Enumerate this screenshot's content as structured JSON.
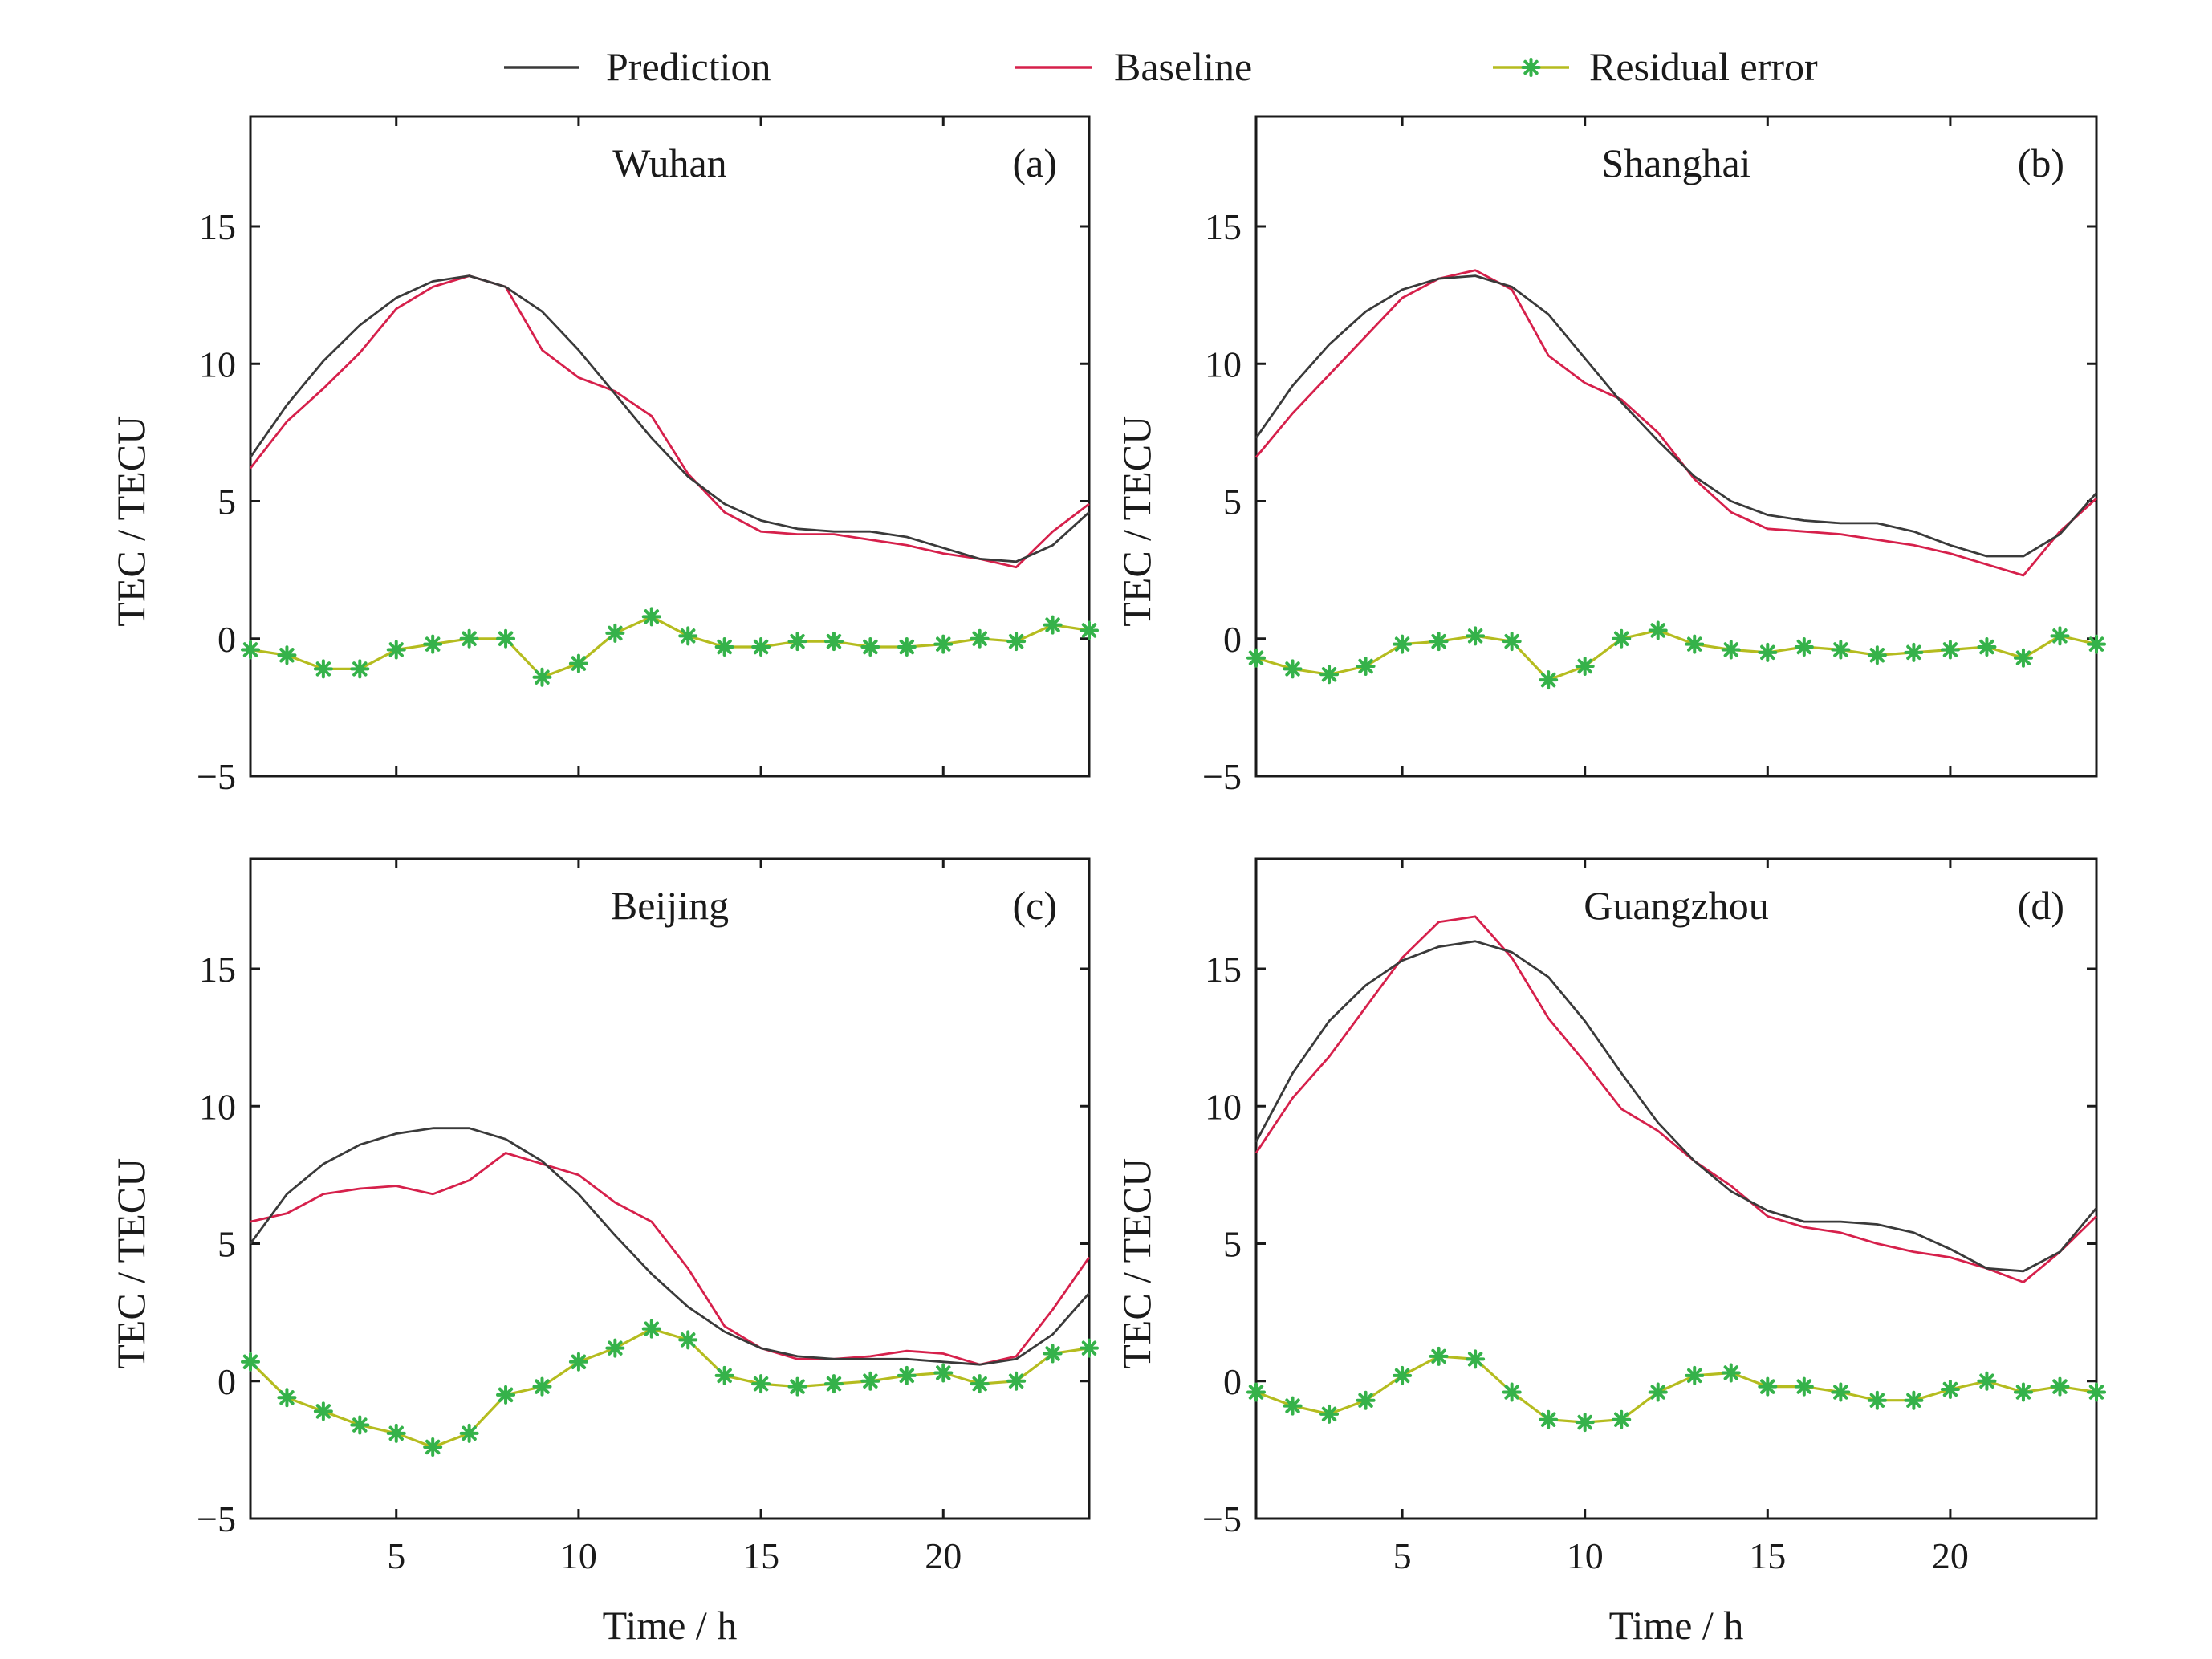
{
  "legend": {
    "placement": "top",
    "entries": [
      {
        "key": "prediction",
        "label": "Prediction"
      },
      {
        "key": "baseline",
        "label": "Baseline"
      },
      {
        "key": "residual",
        "label": "Residual error"
      }
    ]
  },
  "colors": {
    "prediction": "#3a3a3a",
    "baseline": "#d6204b",
    "residual_line": "#b5bc1f",
    "residual_marker": "#35b24a",
    "axis": "#1a1a1a"
  },
  "chart_data": [
    {
      "type": "line",
      "panel": "a",
      "title": "Wuhan",
      "tag": "(a)",
      "xlabel": "Time / h",
      "ylabel": "TEC / TECU",
      "xlim": [
        1,
        24
      ],
      "ylim": [
        -5,
        19
      ],
      "xticks": [
        5,
        10,
        15,
        20
      ],
      "yticks": [
        -5,
        0,
        5,
        10,
        15
      ],
      "show_xticklabels": false,
      "grid": false,
      "x": [
        1,
        2,
        3,
        4,
        5,
        6,
        7,
        8,
        9,
        10,
        11,
        12,
        13,
        14,
        15,
        16,
        17,
        18,
        19,
        20,
        21,
        22,
        23,
        24
      ],
      "series": [
        {
          "name": "Prediction",
          "key": "prediction",
          "values": [
            6.6,
            8.5,
            10.1,
            11.4,
            12.4,
            13.0,
            13.2,
            12.8,
            11.9,
            10.5,
            8.9,
            7.3,
            5.9,
            4.9,
            4.3,
            4.0,
            3.9,
            3.9,
            3.7,
            3.3,
            2.9,
            2.8,
            3.4,
            4.6
          ]
        },
        {
          "name": "Baseline",
          "key": "baseline",
          "values": [
            6.2,
            7.9,
            9.1,
            10.4,
            12.0,
            12.8,
            13.2,
            12.8,
            10.5,
            9.5,
            9.0,
            8.1,
            6.0,
            4.6,
            3.9,
            3.8,
            3.8,
            3.6,
            3.4,
            3.1,
            2.9,
            2.6,
            3.9,
            4.9
          ]
        },
        {
          "name": "Residual error",
          "key": "residual",
          "markers": true,
          "values": [
            -0.4,
            -0.6,
            -1.1,
            -1.1,
            -0.4,
            -0.2,
            0.0,
            0.0,
            -1.4,
            -0.9,
            0.2,
            0.8,
            0.1,
            -0.3,
            -0.3,
            -0.1,
            -0.1,
            -0.3,
            -0.3,
            -0.2,
            0.0,
            -0.1,
            0.5,
            0.3
          ]
        }
      ]
    },
    {
      "type": "line",
      "panel": "b",
      "title": "Shanghai",
      "tag": "(b)",
      "xlabel": "Time / h",
      "ylabel": "TEC / TECU",
      "xlim": [
        1,
        24
      ],
      "ylim": [
        -5,
        19
      ],
      "xticks": [
        5,
        10,
        15,
        20
      ],
      "yticks": [
        -5,
        0,
        5,
        10,
        15
      ],
      "show_xticklabels": false,
      "grid": false,
      "x": [
        1,
        2,
        3,
        4,
        5,
        6,
        7,
        8,
        9,
        10,
        11,
        12,
        13,
        14,
        15,
        16,
        17,
        18,
        19,
        20,
        21,
        22,
        23,
        24
      ],
      "series": [
        {
          "name": "Prediction",
          "key": "prediction",
          "values": [
            7.3,
            9.2,
            10.7,
            11.9,
            12.7,
            13.1,
            13.2,
            12.8,
            11.8,
            10.2,
            8.6,
            7.2,
            5.9,
            5.0,
            4.5,
            4.3,
            4.2,
            4.2,
            3.9,
            3.4,
            3.0,
            3.0,
            3.8,
            5.3
          ]
        },
        {
          "name": "Baseline",
          "key": "baseline",
          "values": [
            6.6,
            8.2,
            9.6,
            11.0,
            12.4,
            13.1,
            13.4,
            12.7,
            10.3,
            9.3,
            8.7,
            7.5,
            5.8,
            4.6,
            4.0,
            3.9,
            3.8,
            3.6,
            3.4,
            3.1,
            2.7,
            2.3,
            3.9,
            5.1
          ]
        },
        {
          "name": "Residual error",
          "key": "residual",
          "markers": true,
          "values": [
            -0.7,
            -1.1,
            -1.3,
            -1.0,
            -0.2,
            -0.1,
            0.1,
            -0.1,
            -1.5,
            -1.0,
            0.0,
            0.3,
            -0.2,
            -0.4,
            -0.5,
            -0.3,
            -0.4,
            -0.6,
            -0.5,
            -0.4,
            -0.3,
            -0.7,
            0.1,
            -0.2
          ]
        }
      ]
    },
    {
      "type": "line",
      "panel": "c",
      "title": "Beijing",
      "tag": "(c)",
      "xlabel": "Time / h",
      "ylabel": "TEC / TECU",
      "xlim": [
        1,
        24
      ],
      "ylim": [
        -5,
        19
      ],
      "xticks": [
        5,
        10,
        15,
        20
      ],
      "yticks": [
        -5,
        0,
        5,
        10,
        15
      ],
      "show_xticklabels": true,
      "grid": false,
      "x": [
        1,
        2,
        3,
        4,
        5,
        6,
        7,
        8,
        9,
        10,
        11,
        12,
        13,
        14,
        15,
        16,
        17,
        18,
        19,
        20,
        21,
        22,
        23,
        24
      ],
      "series": [
        {
          "name": "Prediction",
          "key": "prediction",
          "values": [
            5.0,
            6.8,
            7.9,
            8.6,
            9.0,
            9.2,
            9.2,
            8.8,
            8.0,
            6.8,
            5.3,
            3.9,
            2.7,
            1.8,
            1.2,
            0.9,
            0.8,
            0.8,
            0.8,
            0.7,
            0.6,
            0.8,
            1.7,
            3.2
          ]
        },
        {
          "name": "Baseline",
          "key": "baseline",
          "values": [
            5.8,
            6.1,
            6.8,
            7.0,
            7.1,
            6.8,
            7.3,
            8.3,
            7.9,
            7.5,
            6.5,
            5.8,
            4.1,
            2.0,
            1.2,
            0.8,
            0.8,
            0.9,
            1.1,
            1.0,
            0.6,
            0.9,
            2.6,
            4.5
          ]
        },
        {
          "name": "Residual error",
          "key": "residual",
          "markers": true,
          "values": [
            0.7,
            -0.6,
            -1.1,
            -1.6,
            -1.9,
            -2.4,
            -1.9,
            -0.5,
            -0.2,
            0.7,
            1.2,
            1.9,
            1.5,
            0.2,
            -0.1,
            -0.2,
            -0.1,
            0.0,
            0.2,
            0.3,
            -0.1,
            0.0,
            1.0,
            1.2
          ]
        }
      ]
    },
    {
      "type": "line",
      "panel": "d",
      "title": "Guangzhou",
      "tag": "(d)",
      "xlabel": "Time / h",
      "ylabel": "TEC / TECU",
      "xlim": [
        1,
        24
      ],
      "ylim": [
        -5,
        19
      ],
      "xticks": [
        5,
        10,
        15,
        20
      ],
      "yticks": [
        -5,
        0,
        5,
        10,
        15
      ],
      "show_xticklabels": true,
      "grid": false,
      "x": [
        1,
        2,
        3,
        4,
        5,
        6,
        7,
        8,
        9,
        10,
        11,
        12,
        13,
        14,
        15,
        16,
        17,
        18,
        19,
        20,
        21,
        22,
        23,
        24
      ],
      "series": [
        {
          "name": "Prediction",
          "key": "prediction",
          "values": [
            8.7,
            11.2,
            13.1,
            14.4,
            15.3,
            15.8,
            16.0,
            15.6,
            14.7,
            13.1,
            11.2,
            9.4,
            8.0,
            6.9,
            6.2,
            5.8,
            5.8,
            5.7,
            5.4,
            4.8,
            4.1,
            4.0,
            4.7,
            6.3
          ]
        },
        {
          "name": "Baseline",
          "key": "baseline",
          "values": [
            8.3,
            10.3,
            11.8,
            13.6,
            15.4,
            16.7,
            16.9,
            15.4,
            13.2,
            11.6,
            9.9,
            9.1,
            8.0,
            7.1,
            6.0,
            5.6,
            5.4,
            5.0,
            4.7,
            4.5,
            4.1,
            3.6,
            4.7,
            6.0
          ]
        },
        {
          "name": "Residual error",
          "key": "residual",
          "markers": true,
          "values": [
            -0.4,
            -0.9,
            -1.2,
            -0.7,
            0.2,
            0.9,
            0.8,
            -0.4,
            -1.4,
            -1.5,
            -1.4,
            -0.4,
            0.2,
            0.3,
            -0.2,
            -0.2,
            -0.4,
            -0.7,
            -0.7,
            -0.3,
            0.0,
            -0.4,
            -0.2,
            -0.4
          ]
        }
      ]
    }
  ]
}
